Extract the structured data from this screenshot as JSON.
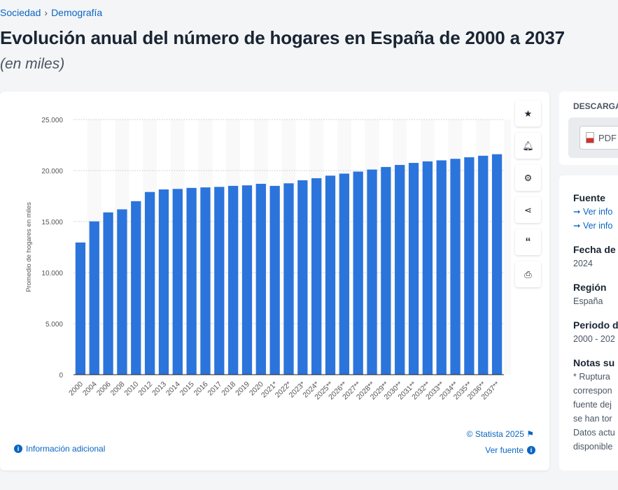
{
  "breadcrumb": [
    "Sociedad",
    "Demografía"
  ],
  "title": "Evolución anual del número de hogares en España de 2000 a 2037",
  "subtitle": "(en miles)",
  "tools": [
    "star-icon",
    "bell-icon",
    "gear-icon",
    "share-icon",
    "quote-icon",
    "print-icon"
  ],
  "footer": {
    "info": "Información adicional",
    "copyright": "© Statista 2025",
    "source": "Ver fuente"
  },
  "download": {
    "title": "DESCARGA",
    "pdf": "PDF"
  },
  "details": {
    "source_label": "Fuente",
    "source_links": [
      "Ver info",
      "Ver info"
    ],
    "date_label": "Fecha de",
    "date_value": "2024",
    "region_label": "Región",
    "region_value": "España",
    "period_label": "Periodo d",
    "period_value": "2000 - 202",
    "notes_label": "Notas su",
    "notes_lines": [
      "* Ruptura",
      "correspon",
      "fuente dej",
      "se han tor",
      "Datos actu",
      "disponible"
    ]
  },
  "chart_data": {
    "type": "bar",
    "ylabel": "Promedio de hogares en miles",
    "ylim": [
      0,
      25000
    ],
    "yticks": [
      "0",
      "5.000",
      "10.000",
      "15.000",
      "20.000",
      "25.000"
    ],
    "grid": true,
    "bar_color": "#2b74db",
    "categories": [
      "2000",
      "2004",
      "2006",
      "2008",
      "2010",
      "2012",
      "2013",
      "2014",
      "2015",
      "2016",
      "2017",
      "2018",
      "2019",
      "2020",
      "2021*",
      "2022*",
      "2023*",
      "2024*",
      "2025**",
      "2026**",
      "2027**",
      "2028**",
      "2029**",
      "2030**",
      "2031**",
      "2032**",
      "2033**",
      "2034**",
      "2035**",
      "2036**",
      "2037**"
    ],
    "values": [
      12950,
      15020,
      15900,
      16200,
      17000,
      17900,
      18150,
      18200,
      18300,
      18350,
      18400,
      18500,
      18550,
      18700,
      18500,
      18750,
      19050,
      19250,
      19500,
      19700,
      19900,
      20100,
      20350,
      20550,
      20750,
      20900,
      21000,
      21150,
      21300,
      21450,
      21600
    ]
  }
}
